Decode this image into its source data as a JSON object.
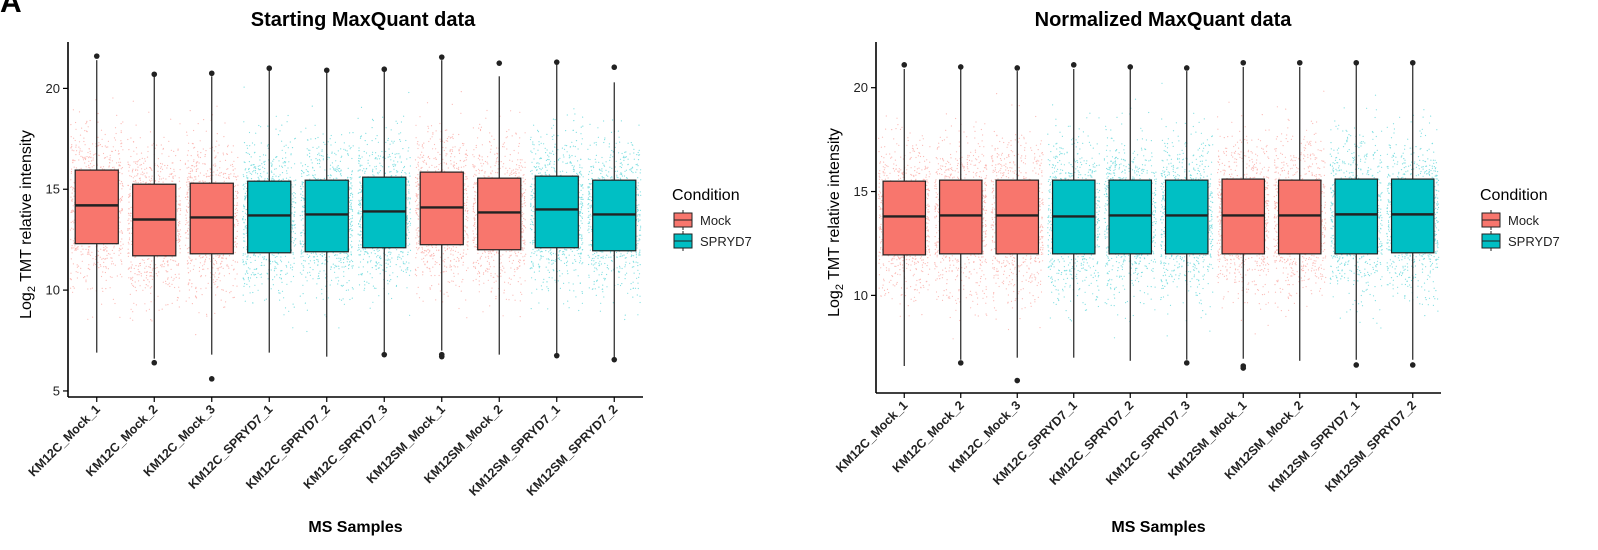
{
  "figure": {
    "panel_label": "A"
  },
  "legend": {
    "title": "Condition",
    "items": [
      {
        "label": "Mock",
        "color": "#F8766D"
      },
      {
        "label": "SPRYD7",
        "color": "#00BFC4"
      }
    ]
  },
  "chart_data": [
    {
      "type": "box",
      "title": "Starting MaxQuant data",
      "xlabel": "MS Samples",
      "ylabel_base": "Log",
      "ylabel_sub": "2",
      "ylabel_rest": " TMT relative intensity",
      "ylim": [
        4.7,
        22.3
      ],
      "yticks": [
        5,
        10,
        15,
        20
      ],
      "grid": false,
      "legend_position": "right",
      "categories": [
        "KM12C_Mock_1",
        "KM12C_Mock_2",
        "KM12C_Mock_3",
        "KM12C_SPRYD7_1",
        "KM12C_SPRYD7_2",
        "KM12C_SPRYD7_3",
        "KM12SM_Mock_1",
        "KM12SM_Mock_2",
        "KM12SM_SPRYD7_1",
        "KM12SM_SPRYD7_2"
      ],
      "condition": [
        "Mock",
        "Mock",
        "Mock",
        "SPRYD7",
        "SPRYD7",
        "SPRYD7",
        "Mock",
        "Mock",
        "SPRYD7",
        "SPRYD7"
      ],
      "boxes": [
        {
          "q1": 12.3,
          "median": 14.2,
          "q3": 15.95,
          "low": 6.9,
          "high": 21.4,
          "outliers": [
            21.6
          ]
        },
        {
          "q1": 11.7,
          "median": 13.5,
          "q3": 15.25,
          "low": 6.6,
          "high": 20.6,
          "outliers": [
            20.7,
            6.4
          ]
        },
        {
          "q1": 11.8,
          "median": 13.6,
          "q3": 15.3,
          "low": 6.8,
          "high": 20.6,
          "outliers": [
            20.75,
            5.6
          ]
        },
        {
          "q1": 11.85,
          "median": 13.7,
          "q3": 15.4,
          "low": 6.9,
          "high": 20.9,
          "outliers": [
            21.0
          ]
        },
        {
          "q1": 11.9,
          "median": 13.75,
          "q3": 15.45,
          "low": 6.7,
          "high": 20.8,
          "outliers": [
            20.9
          ]
        },
        {
          "q1": 12.1,
          "median": 13.9,
          "q3": 15.6,
          "low": 6.9,
          "high": 20.9,
          "outliers": [
            20.95,
            6.8
          ]
        },
        {
          "q1": 12.25,
          "median": 14.1,
          "q3": 15.85,
          "low": 7.0,
          "high": 21.4,
          "outliers": [
            21.55,
            6.8,
            6.7
          ]
        },
        {
          "q1": 12.0,
          "median": 13.85,
          "q3": 15.55,
          "low": 6.8,
          "high": 20.6,
          "outliers": [
            21.25
          ]
        },
        {
          "q1": 12.1,
          "median": 14.0,
          "q3": 15.65,
          "low": 6.8,
          "high": 21.2,
          "outliers": [
            21.3,
            6.75
          ]
        },
        {
          "q1": 11.95,
          "median": 13.75,
          "q3": 15.45,
          "low": 6.6,
          "high": 20.3,
          "outliers": [
            21.05,
            6.55
          ]
        }
      ]
    },
    {
      "type": "box",
      "title": "Normalized MaxQuant data",
      "xlabel": "MS Samples",
      "ylabel_base": "Log",
      "ylabel_sub": "2",
      "ylabel_rest": " TMT relative intensity",
      "ylim": [
        5.3,
        22.2
      ],
      "yticks": [
        10,
        15,
        20
      ],
      "grid": false,
      "legend_position": "right",
      "categories": [
        "KM12C_Mock_1",
        "KM12C_Mock_2",
        "KM12C_Mock_3",
        "KM12C_SPRYD7_1",
        "KM12C_SPRYD7_2",
        "KM12C_SPRYD7_3",
        "KM12SM_Mock_1",
        "KM12SM_Mock_2",
        "KM12SM_SPRYD7_1",
        "KM12SM_SPRYD7_2"
      ],
      "condition": [
        "Mock",
        "Mock",
        "Mock",
        "SPRYD7",
        "SPRYD7",
        "SPRYD7",
        "Mock",
        "Mock",
        "SPRYD7",
        "SPRYD7"
      ],
      "boxes": [
        {
          "q1": 11.95,
          "median": 13.8,
          "q3": 15.5,
          "low": 6.6,
          "high": 20.9,
          "outliers": [
            21.1
          ]
        },
        {
          "q1": 12.0,
          "median": 13.85,
          "q3": 15.55,
          "low": 6.9,
          "high": 20.9,
          "outliers": [
            21.0,
            6.75
          ]
        },
        {
          "q1": 12.0,
          "median": 13.85,
          "q3": 15.55,
          "low": 7.0,
          "high": 20.8,
          "outliers": [
            20.95,
            5.9
          ]
        },
        {
          "q1": 12.0,
          "median": 13.8,
          "q3": 15.55,
          "low": 7.0,
          "high": 20.9,
          "outliers": [
            21.1
          ]
        },
        {
          "q1": 12.0,
          "median": 13.85,
          "q3": 15.55,
          "low": 6.85,
          "high": 20.9,
          "outliers": [
            21.0
          ]
        },
        {
          "q1": 12.0,
          "median": 13.85,
          "q3": 15.55,
          "low": 6.9,
          "high": 20.8,
          "outliers": [
            20.95,
            6.75
          ]
        },
        {
          "q1": 12.0,
          "median": 13.85,
          "q3": 15.6,
          "low": 6.95,
          "high": 21.0,
          "outliers": [
            21.2,
            6.6,
            6.5
          ]
        },
        {
          "q1": 12.0,
          "median": 13.85,
          "q3": 15.55,
          "low": 6.85,
          "high": 21.0,
          "outliers": [
            21.2
          ]
        },
        {
          "q1": 12.0,
          "median": 13.9,
          "q3": 15.6,
          "low": 6.9,
          "high": 21.1,
          "outliers": [
            21.2,
            6.65
          ]
        },
        {
          "q1": 12.05,
          "median": 13.9,
          "q3": 15.6,
          "low": 6.9,
          "high": 21.1,
          "outliers": [
            21.2,
            6.65
          ]
        }
      ]
    }
  ]
}
